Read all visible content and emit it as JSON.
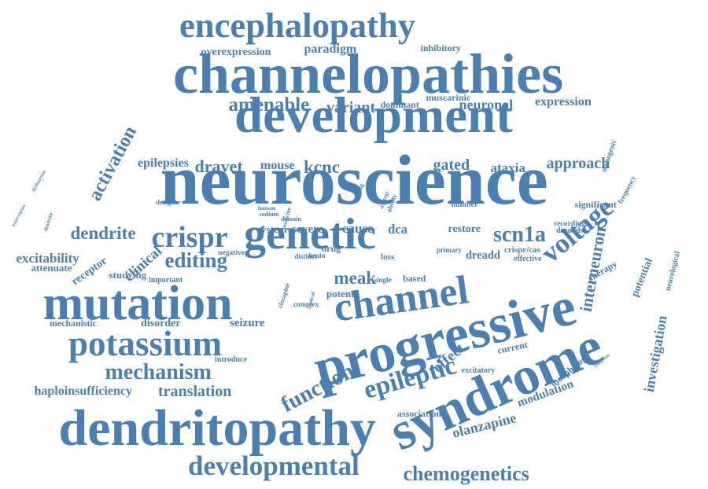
{
  "color": "#4a7fb0",
  "words": [
    {
      "text": "encephalopathy"
    },
    {
      "text": "channelopathies"
    },
    {
      "text": "overexpression"
    },
    {
      "text": "paradigm"
    },
    {
      "text": "inhibitory"
    },
    {
      "text": "development"
    },
    {
      "text": "amenable"
    },
    {
      "text": "variant"
    },
    {
      "text": "dominant"
    },
    {
      "text": "muscarinic"
    },
    {
      "text": "neuronal"
    },
    {
      "text": "expression"
    },
    {
      "text": "activation"
    },
    {
      "text": "neuroscience"
    },
    {
      "text": "epilepsies"
    },
    {
      "text": "dravet"
    },
    {
      "text": "mouse"
    },
    {
      "text": "kcnc"
    },
    {
      "text": "gated"
    },
    {
      "text": "ataxia"
    },
    {
      "text": "approach"
    },
    {
      "text": "monogenic"
    },
    {
      "text": "frequency"
    },
    {
      "text": "interneuron"
    },
    {
      "text": "dysfunction"
    },
    {
      "text": "transcription"
    },
    {
      "text": "dendritic"
    },
    {
      "text": "designer"
    },
    {
      "text": "causing"
    },
    {
      "text": "strategy"
    },
    {
      "text": "ability"
    },
    {
      "text": "medicine"
    },
    {
      "text": "human"
    },
    {
      "text": "sodium"
    },
    {
      "text": "domain"
    },
    {
      "text": "number"
    },
    {
      "text": "significant"
    },
    {
      "text": "recording"
    },
    {
      "text": "dreadds"
    },
    {
      "text": "dendrite"
    },
    {
      "text": "crispr"
    },
    {
      "text": "genetic"
    },
    {
      "text": "system"
    },
    {
      "text": "severe"
    },
    {
      "text": "cause"
    },
    {
      "text": "dca"
    },
    {
      "text": "restore"
    },
    {
      "text": "scn1a"
    },
    {
      "text": "voltage"
    },
    {
      "text": "potential"
    },
    {
      "text": "neurological"
    },
    {
      "text": "excitability"
    },
    {
      "text": "receptor"
    },
    {
      "text": "clinical"
    },
    {
      "text": "editing"
    },
    {
      "text": "attenuate"
    },
    {
      "text": "negative"
    },
    {
      "text": "drug"
    },
    {
      "text": "distinct"
    },
    {
      "text": "brain"
    },
    {
      "text": "primary"
    },
    {
      "text": "loss"
    },
    {
      "text": "dreadd"
    },
    {
      "text": "crispr/cas"
    },
    {
      "text": "effective"
    },
    {
      "text": "studying"
    },
    {
      "text": "important"
    },
    {
      "text": "meak"
    },
    {
      "text": "single"
    },
    {
      "text": "based"
    },
    {
      "text": "therapy"
    },
    {
      "text": "mutation"
    },
    {
      "text": "channel"
    },
    {
      "text": "potent"
    },
    {
      "text": "complex"
    },
    {
      "text": "clozapine"
    },
    {
      "text": "cortical"
    },
    {
      "text": "mechanistic"
    },
    {
      "text": "disorder"
    },
    {
      "text": "seizure"
    },
    {
      "text": "progressive"
    },
    {
      "text": "investigation"
    },
    {
      "text": "potassium"
    },
    {
      "text": "effect"
    },
    {
      "text": "current"
    },
    {
      "text": "excitatory"
    },
    {
      "text": "reduction"
    },
    {
      "text": "syndrome"
    },
    {
      "text": "mechanism"
    },
    {
      "text": "introduce"
    },
    {
      "text": "morphology"
    },
    {
      "text": "haploinsufficiency"
    },
    {
      "text": "translation"
    },
    {
      "text": "function"
    },
    {
      "text": "epileptic"
    },
    {
      "text": "modulation"
    },
    {
      "text": "association"
    },
    {
      "text": "dendritopathy"
    },
    {
      "text": "olanzapine"
    },
    {
      "text": "developmental"
    },
    {
      "text": "chemogenetics"
    }
  ]
}
